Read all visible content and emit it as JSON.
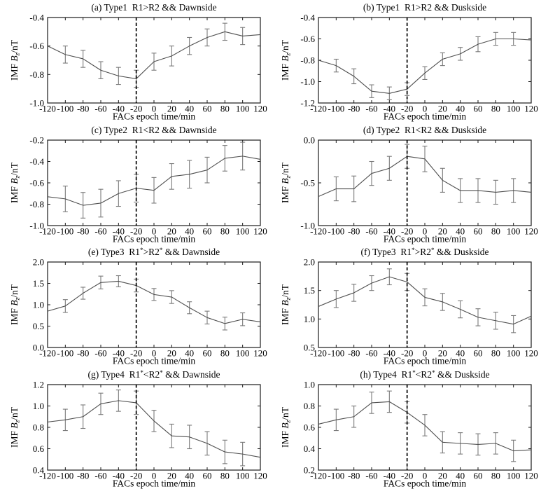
{
  "figure": {
    "xlabel": "FACs epoch time/min",
    "ylabel_text": "IMF Bz/nT",
    "ylabel_parts": {
      "prefix": "IMF ",
      "symbol": "B",
      "subscript": "z",
      "suffix": "/nT"
    },
    "colors": {
      "axis": "#1a1a1a",
      "line": "#4f4f4f",
      "error_bar": "#7a7a7a",
      "vline": "#000000",
      "background": "#ffffff",
      "text": "#000000"
    }
  },
  "chart_data": [
    {
      "type": "line",
      "panel": "a",
      "title": "(a) Type1  R1>R2 && Dawnside",
      "xlabel": "FACs epoch time/min",
      "ylabel": "IMF Bz/nT",
      "x": [
        -120,
        -100,
        -80,
        -60,
        -40,
        -20,
        0,
        20,
        40,
        60,
        80,
        100,
        120
      ],
      "values": [
        -0.6,
        -0.66,
        -0.69,
        -0.77,
        -0.81,
        -0.83,
        -0.71,
        -0.67,
        -0.6,
        -0.54,
        -0.5,
        -0.53,
        -0.52
      ],
      "errors": [
        0,
        0.06,
        0.06,
        0.06,
        0.06,
        0.06,
        0.06,
        0.07,
        0.06,
        0.06,
        0.06,
        0.06,
        0
      ],
      "xlim": [
        -120,
        120
      ],
      "xticks": [
        -120,
        -100,
        -80,
        -60,
        -40,
        -20,
        0,
        20,
        40,
        60,
        80,
        100,
        120
      ],
      "ylim": [
        -1.0,
        -0.4
      ],
      "yticks": [
        -1.0,
        -0.8,
        -0.6,
        -0.4
      ],
      "ytick_labels": [
        "-1.0",
        "-0.8",
        "-0.6",
        "-0.4"
      ],
      "vline_x": -20,
      "grid": false,
      "legend": "none"
    },
    {
      "type": "line",
      "panel": "b",
      "title": "(b) Type1  R1>R2 && Duskside",
      "xlabel": "FACs epoch time/min",
      "ylabel": "IMF Bz/nT",
      "x": [
        -120,
        -100,
        -80,
        -60,
        -40,
        -20,
        0,
        20,
        40,
        60,
        80,
        100,
        120
      ],
      "values": [
        -0.8,
        -0.85,
        -0.95,
        -1.09,
        -1.11,
        -1.07,
        -0.92,
        -0.79,
        -0.74,
        -0.65,
        -0.6,
        -0.6,
        -0.61
      ],
      "errors": [
        0,
        0.06,
        0.07,
        0.06,
        0.06,
        0.06,
        0.06,
        0.06,
        0.06,
        0.07,
        0.06,
        0.06,
        0
      ],
      "xlim": [
        -120,
        120
      ],
      "xticks": [
        -120,
        -100,
        -80,
        -60,
        -40,
        -20,
        0,
        20,
        40,
        60,
        80,
        100,
        120
      ],
      "ylim": [
        -1.2,
        -0.4
      ],
      "yticks": [
        -1.2,
        -1.0,
        -0.8,
        -0.6,
        -0.4
      ],
      "ytick_labels": [
        "-1.2",
        "-1.0",
        "-0.8",
        "-0.6",
        "-0.4"
      ],
      "vline_x": -20,
      "grid": false,
      "legend": "none"
    },
    {
      "type": "line",
      "panel": "c",
      "title": "(c) Type2  R1<R2 && Dawnside",
      "xlabel": "FACs epoch time/min",
      "ylabel": "IMF Bz/nT",
      "x": [
        -120,
        -100,
        -80,
        -60,
        -40,
        -20,
        0,
        20,
        40,
        60,
        80,
        100,
        120
      ],
      "values": [
        -0.73,
        -0.75,
        -0.81,
        -0.79,
        -0.7,
        -0.65,
        -0.67,
        -0.54,
        -0.52,
        -0.48,
        -0.37,
        -0.35,
        -0.38
      ],
      "errors": [
        0,
        0.12,
        0.12,
        0.13,
        0.12,
        0.13,
        0.12,
        0.12,
        0.13,
        0.12,
        0.12,
        0.13,
        0
      ],
      "xlim": [
        -120,
        120
      ],
      "xticks": [
        -120,
        -100,
        -80,
        -60,
        -40,
        -20,
        0,
        20,
        40,
        60,
        80,
        100,
        120
      ],
      "ylim": [
        -1.0,
        -0.2
      ],
      "yticks": [
        -1.0,
        -0.8,
        -0.6,
        -0.4,
        -0.2
      ],
      "ytick_labels": [
        "-1.0",
        "-0.8",
        "-0.6",
        "-0.4",
        "-0.2"
      ],
      "vline_x": -20,
      "grid": false,
      "legend": "none"
    },
    {
      "type": "line",
      "panel": "d",
      "title": "(d) Type2  R1<R2 && Duskside",
      "xlabel": "FACs epoch time/min",
      "ylabel": "IMF Bz/nT",
      "x": [
        -120,
        -100,
        -80,
        -60,
        -40,
        -20,
        0,
        20,
        40,
        60,
        80,
        100,
        120
      ],
      "values": [
        -0.66,
        -0.57,
        -0.57,
        -0.39,
        -0.33,
        -0.19,
        -0.22,
        -0.47,
        -0.59,
        -0.59,
        -0.61,
        -0.59,
        -0.61
      ],
      "errors": [
        0,
        0.14,
        0.15,
        0.14,
        0.14,
        0.14,
        0.15,
        0.14,
        0.14,
        0.14,
        0.14,
        0.14,
        0
      ],
      "xlim": [
        -120,
        120
      ],
      "xticks": [
        -120,
        -100,
        -80,
        -60,
        -40,
        -20,
        0,
        20,
        40,
        60,
        80,
        100,
        120
      ],
      "ylim": [
        -1.0,
        0.0
      ],
      "yticks": [
        -1.0,
        -0.5,
        0.0
      ],
      "ytick_labels": [
        "-1.0",
        "-0.5",
        "0.0"
      ],
      "vline_x": -20,
      "grid": false,
      "legend": "none"
    },
    {
      "type": "line",
      "panel": "e",
      "title": "(e) Type3  R1*>R2* && Dawnside",
      "xlabel": "FACs epoch time/min",
      "ylabel": "IMF Bz/nT",
      "x": [
        -120,
        -100,
        -80,
        -60,
        -40,
        -20,
        0,
        20,
        40,
        60,
        80,
        100,
        120
      ],
      "values": [
        0.85,
        0.97,
        1.27,
        1.52,
        1.55,
        1.45,
        1.24,
        1.18,
        0.93,
        0.7,
        0.56,
        0.66,
        0.6
      ],
      "errors": [
        0,
        0.15,
        0.14,
        0.15,
        0.13,
        0.15,
        0.14,
        0.15,
        0.14,
        0.15,
        0.15,
        0.15,
        0
      ],
      "xlim": [
        -120,
        120
      ],
      "xticks": [
        -120,
        -100,
        -80,
        -60,
        -40,
        -20,
        0,
        20,
        40,
        60,
        80,
        100,
        120
      ],
      "ylim": [
        0.0,
        2.0
      ],
      "yticks": [
        0.0,
        0.5,
        1.0,
        1.5,
        2.0
      ],
      "ytick_labels": [
        "0.0",
        "0.5",
        "1.0",
        "1.5",
        "2.0"
      ],
      "vline_x": -20,
      "grid": false,
      "legend": "none"
    },
    {
      "type": "line",
      "panel": "f",
      "title": "(f) Type3  R1*>R2* && Duskside",
      "xlabel": "FACs epoch time/min",
      "ylabel": "IMF Bz/nT",
      "x": [
        -120,
        -100,
        -80,
        -60,
        -40,
        -20,
        0,
        20,
        40,
        60,
        80,
        100,
        120
      ],
      "values": [
        1.22,
        1.35,
        1.46,
        1.63,
        1.74,
        1.65,
        1.38,
        1.3,
        1.17,
        1.03,
        0.97,
        0.91,
        1.05
      ],
      "errors": [
        0,
        0.15,
        0.15,
        0.13,
        0.14,
        0.15,
        0.15,
        0.15,
        0.15,
        0.15,
        0.15,
        0.15,
        0
      ],
      "xlim": [
        -120,
        120
      ],
      "xticks": [
        -120,
        -100,
        -80,
        -60,
        -40,
        -20,
        0,
        20,
        40,
        60,
        80,
        100,
        120
      ],
      "ylim": [
        0.5,
        2.0
      ],
      "yticks": [
        0.5,
        1.0,
        1.5,
        2.0
      ],
      "ytick_labels": [
        "0.5",
        "1.0",
        "1.5",
        "2.0"
      ],
      "vline_x": -20,
      "grid": false,
      "legend": "none"
    },
    {
      "type": "line",
      "panel": "g",
      "title": "(g) Type4  R1*<R2* && Dawnside",
      "xlabel": "FACs epoch time/min",
      "ylabel": "IMF Bz/nT",
      "x": [
        -120,
        -100,
        -80,
        -60,
        -40,
        -20,
        0,
        20,
        40,
        60,
        80,
        100,
        120
      ],
      "values": [
        0.85,
        0.87,
        0.9,
        1.02,
        1.05,
        1.03,
        0.86,
        0.72,
        0.71,
        0.65,
        0.57,
        0.55,
        0.52
      ],
      "errors": [
        0,
        0.1,
        0.11,
        0.1,
        0.1,
        0.11,
        0.1,
        0.11,
        0.11,
        0.11,
        0.11,
        0.11,
        0
      ],
      "xlim": [
        -120,
        120
      ],
      "xticks": [
        -120,
        -100,
        -80,
        -60,
        -40,
        -20,
        0,
        20,
        40,
        60,
        80,
        100,
        120
      ],
      "ylim": [
        0.4,
        1.2
      ],
      "yticks": [
        0.4,
        0.6,
        0.8,
        1.0,
        1.2
      ],
      "ytick_labels": [
        "0.4",
        "0.6",
        "0.8",
        "1.0",
        "1.2"
      ],
      "vline_x": -20,
      "grid": false,
      "legend": "none"
    },
    {
      "type": "line",
      "panel": "h",
      "title": "(h) Type4  R1*<R2* && Duskside",
      "xlabel": "FACs epoch time/min",
      "ylabel": "IMF Bz/nT",
      "x": [
        -120,
        -100,
        -80,
        -60,
        -40,
        -20,
        0,
        20,
        40,
        60,
        80,
        100,
        120
      ],
      "values": [
        0.63,
        0.67,
        0.7,
        0.83,
        0.84,
        0.74,
        0.62,
        0.46,
        0.45,
        0.44,
        0.45,
        0.38,
        0.39
      ],
      "errors": [
        0,
        0.1,
        0.1,
        0.1,
        0.1,
        0.1,
        0.1,
        0.1,
        0.1,
        0.1,
        0.1,
        0.1,
        0
      ],
      "xlim": [
        -120,
        120
      ],
      "xticks": [
        -120,
        -100,
        -80,
        -60,
        -40,
        -20,
        0,
        20,
        40,
        60,
        80,
        100,
        120
      ],
      "ylim": [
        0.2,
        1.0
      ],
      "yticks": [
        0.2,
        0.4,
        0.6,
        0.8,
        1.0
      ],
      "ytick_labels": [
        "0.2",
        "0.4",
        "0.6",
        "0.8",
        "1.0"
      ],
      "vline_x": -20,
      "grid": false,
      "legend": "none"
    }
  ]
}
